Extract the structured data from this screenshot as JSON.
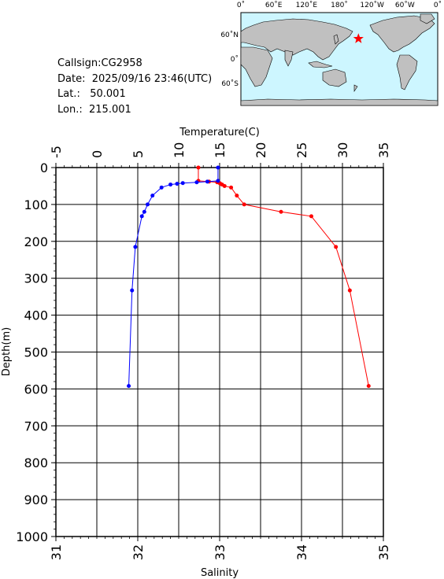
{
  "info": {
    "callsign_label": "Callsign:",
    "callsign": "CG2958",
    "date_label": "Date:",
    "date": "2025/09/16 23:46(UTC)",
    "lat_label": "Lat.:",
    "lat": "50.001",
    "lon_label": "Lon.:",
    "lon": "215.001"
  },
  "map": {
    "top_labels": [
      "0˚",
      "60˚E",
      "120˚E",
      "180˚",
      "120˚W",
      "60˚W",
      "0˚"
    ],
    "lat_labels": [
      "60˚N",
      "0˚",
      "60˚S"
    ],
    "ocean_color": "#cdf6ff",
    "land_color": "#c0c0c0",
    "marker_color": "#ff0000",
    "station": {
      "lon": 215.001,
      "lat": 50.001
    }
  },
  "chart_data": {
    "type": "line",
    "title": "",
    "xlabel_top": "Temperature(C)",
    "xlabel_bottom": "Salinity",
    "ylabel": "Depth(m)",
    "temperature_axis": {
      "range": [
        -5,
        35
      ],
      "ticks": [
        "-5",
        "0",
        "5",
        "10",
        "15",
        "20",
        "25",
        "30",
        "35"
      ]
    },
    "salinity_axis": {
      "range": [
        31,
        35
      ],
      "ticks": [
        "31",
        "32",
        "33",
        "34",
        "35"
      ]
    },
    "depth_axis": {
      "range": [
        0,
        1000
      ],
      "inverted": true,
      "ticks": [
        "0",
        "100",
        "200",
        "300",
        "400",
        "500",
        "600",
        "700",
        "800",
        "900",
        "1000"
      ]
    },
    "grid": true,
    "series": [
      {
        "quantity": "temperature",
        "color": "#ff0000",
        "points": [
          {
            "depth": 0,
            "value": 12.4
          },
          {
            "depth": 36,
            "value": 12.4
          },
          {
            "depth": 38,
            "value": 13.7
          },
          {
            "depth": 40,
            "value": 14.7
          },
          {
            "depth": 42,
            "value": 15.0
          },
          {
            "depth": 44,
            "value": 15.1
          },
          {
            "depth": 46,
            "value": 15.3
          },
          {
            "depth": 50,
            "value": 15.6
          },
          {
            "depth": 54,
            "value": 16.4
          },
          {
            "depth": 76,
            "value": 17.1
          },
          {
            "depth": 100,
            "value": 18.0
          },
          {
            "depth": 120,
            "value": 22.5
          },
          {
            "depth": 132,
            "value": 26.2
          },
          {
            "depth": 215,
            "value": 29.2
          },
          {
            "depth": 333,
            "value": 30.9
          },
          {
            "depth": 592,
            "value": 33.2
          }
        ]
      },
      {
        "quantity": "salinity",
        "color": "#0000ff",
        "points": [
          {
            "depth": 0,
            "value": 32.98
          },
          {
            "depth": 36,
            "value": 32.98
          },
          {
            "depth": 38,
            "value": 32.85
          },
          {
            "depth": 40,
            "value": 32.72
          },
          {
            "depth": 42,
            "value": 32.55
          },
          {
            "depth": 44,
            "value": 32.48
          },
          {
            "depth": 46,
            "value": 32.4
          },
          {
            "depth": 54,
            "value": 32.29
          },
          {
            "depth": 76,
            "value": 32.18
          },
          {
            "depth": 100,
            "value": 32.12
          },
          {
            "depth": 120,
            "value": 32.08
          },
          {
            "depth": 132,
            "value": 32.05
          },
          {
            "depth": 215,
            "value": 31.97
          },
          {
            "depth": 333,
            "value": 31.93
          },
          {
            "depth": 592,
            "value": 31.89
          }
        ]
      }
    ]
  }
}
